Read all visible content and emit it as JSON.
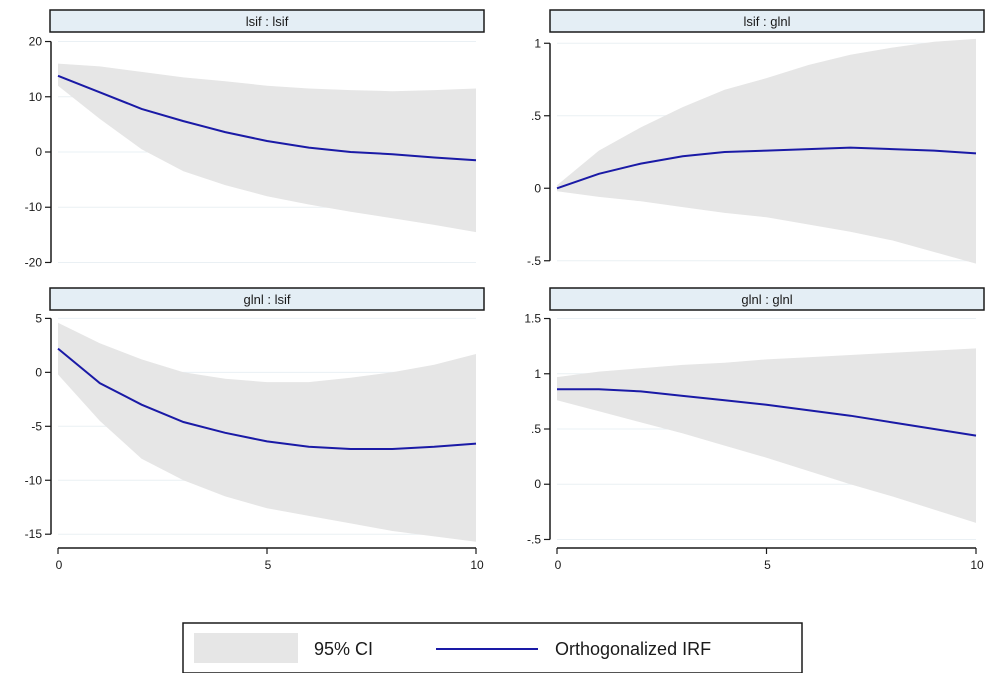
{
  "chart_data": {
    "type": "line",
    "panels": [
      {
        "title": "lsif : lsif",
        "xlim": [
          0,
          10
        ],
        "ylim": [
          -21,
          21
        ],
        "yticks": [
          20,
          10,
          0,
          -10,
          -20
        ],
        "ytick_labels": [
          "20",
          "10",
          "0",
          "-10",
          "-20"
        ],
        "xticks": [],
        "xtick_labels": [],
        "x": [
          0,
          1,
          2,
          3,
          4,
          5,
          6,
          7,
          8,
          9,
          10
        ],
        "irf": [
          13.8,
          10.8,
          7.8,
          5.6,
          3.6,
          2.0,
          0.8,
          0.0,
          -0.4,
          -1.0,
          -1.5
        ],
        "ci_lower": [
          12.0,
          6.0,
          0.5,
          -3.5,
          -6.0,
          -8.0,
          -9.5,
          -10.8,
          -12.0,
          -13.2,
          -14.5
        ],
        "ci_upper": [
          16.0,
          15.5,
          14.5,
          13.5,
          12.8,
          12.0,
          11.5,
          11.2,
          11.0,
          11.2,
          11.5
        ]
      },
      {
        "title": "lsif : glnl",
        "xlim": [
          0,
          10
        ],
        "ylim": [
          -0.55,
          1.05
        ],
        "yticks": [
          1,
          0.5,
          0,
          -0.5
        ],
        "ytick_labels": [
          "1",
          ".5",
          "0",
          "-.5"
        ],
        "xticks": [],
        "xtick_labels": [],
        "x": [
          0,
          1,
          2,
          3,
          4,
          5,
          6,
          7,
          8,
          9,
          10
        ],
        "irf": [
          0.0,
          0.1,
          0.17,
          0.22,
          0.25,
          0.26,
          0.27,
          0.28,
          0.27,
          0.26,
          0.24
        ],
        "ci_lower": [
          -0.02,
          -0.06,
          -0.09,
          -0.13,
          -0.17,
          -0.2,
          -0.25,
          -0.3,
          -0.36,
          -0.44,
          -0.52
        ],
        "ci_upper": [
          0.02,
          0.26,
          0.42,
          0.56,
          0.68,
          0.76,
          0.85,
          0.92,
          0.97,
          1.01,
          1.03
        ]
      },
      {
        "title": "glnl : lsif",
        "xlim": [
          0,
          10
        ],
        "ylim": [
          -16,
          5.5
        ],
        "yticks": [
          5,
          0,
          -5,
          -10,
          -15
        ],
        "ytick_labels": [
          "5",
          "0",
          "-5",
          "-10",
          "-15"
        ],
        "xticks": [
          0,
          5,
          10
        ],
        "xtick_labels": [
          "0",
          "5",
          "10"
        ],
        "x": [
          0,
          1,
          2,
          3,
          4,
          5,
          6,
          7,
          8,
          9,
          10
        ],
        "irf": [
          2.2,
          -1.0,
          -3.0,
          -4.6,
          -5.6,
          -6.4,
          -6.9,
          -7.1,
          -7.1,
          -6.9,
          -6.6
        ],
        "ci_lower": [
          -0.2,
          -4.5,
          -8.0,
          -10.0,
          -11.5,
          -12.6,
          -13.3,
          -14.0,
          -14.7,
          -15.2,
          -15.7
        ],
        "ci_upper": [
          4.6,
          2.7,
          1.2,
          0.0,
          -0.6,
          -0.9,
          -0.9,
          -0.5,
          0.0,
          0.7,
          1.7
        ]
      },
      {
        "title": "glnl : glnl",
        "xlim": [
          0,
          10
        ],
        "ylim": [
          -0.55,
          1.55
        ],
        "yticks": [
          1.5,
          1,
          0.5,
          0,
          -0.5
        ],
        "ytick_labels": [
          "1.5",
          "1",
          ".5",
          "0",
          "-.5"
        ],
        "xticks": [
          0,
          5,
          10
        ],
        "xtick_labels": [
          "0",
          "5",
          "10"
        ],
        "x": [
          0,
          1,
          2,
          3,
          4,
          5,
          6,
          7,
          8,
          9,
          10
        ],
        "irf": [
          0.86,
          0.86,
          0.84,
          0.8,
          0.76,
          0.72,
          0.67,
          0.62,
          0.56,
          0.5,
          0.44
        ],
        "ci_lower": [
          0.76,
          0.66,
          0.56,
          0.46,
          0.35,
          0.24,
          0.12,
          0.0,
          -0.11,
          -0.23,
          -0.35
        ],
        "ci_upper": [
          0.97,
          1.02,
          1.05,
          1.08,
          1.1,
          1.13,
          1.15,
          1.17,
          1.19,
          1.21,
          1.23
        ]
      }
    ],
    "legend": {
      "position": "bottom",
      "items": [
        {
          "label": "95% CI",
          "kind": "area",
          "color": "#e6e6e6"
        },
        {
          "label": "Orthogonalized IRF",
          "kind": "line",
          "color": "#1a1aa6"
        }
      ]
    },
    "colors": {
      "ci_fill": "#e6e6e6",
      "irf_line": "#1a1aa6",
      "title_bg": "#e4eef5",
      "grid": "#eaf0f4"
    },
    "grid": true
  }
}
